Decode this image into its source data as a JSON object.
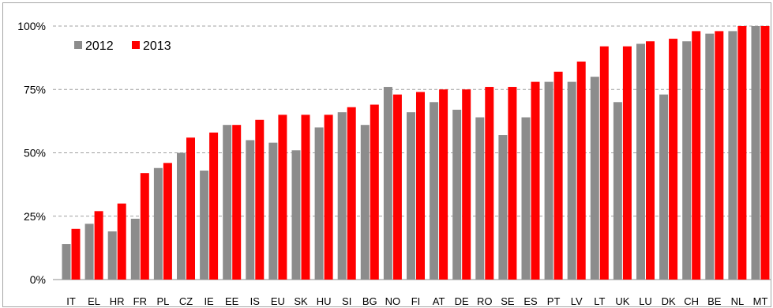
{
  "chart_data": {
    "type": "bar",
    "categories": [
      "IT",
      "EL",
      "HR",
      "FR",
      "PL",
      "CZ",
      "IE",
      "EE",
      "IS",
      "EU",
      "SK",
      "HU",
      "SI",
      "BG",
      "NO",
      "FI",
      "AT",
      "DE",
      "RO",
      "SE",
      "ES",
      "PT",
      "LV",
      "LT",
      "UK",
      "LU",
      "DK",
      "CH",
      "BE",
      "NL",
      "MT"
    ],
    "series": [
      {
        "name": "2012",
        "color": "#8c8c8c",
        "values": [
          14,
          22,
          19,
          24,
          44,
          50,
          43,
          61,
          55,
          54,
          51,
          60,
          66,
          61,
          76,
          66,
          70,
          67,
          64,
          57,
          64,
          78,
          78,
          80,
          70,
          93,
          73,
          94,
          97,
          98,
          100
        ]
      },
      {
        "name": "2013",
        "color": "#ff0000",
        "values": [
          20,
          27,
          30,
          42,
          46,
          56,
          58,
          61,
          63,
          65,
          65,
          65,
          68,
          69,
          73,
          74,
          75,
          75,
          76,
          76,
          78,
          82,
          86,
          92,
          92,
          94,
          95,
          98,
          98,
          100,
          100
        ]
      }
    ],
    "yticks": [
      "0%",
      "25%",
      "50%",
      "75%",
      "100%"
    ],
    "ylim": [
      0,
      100
    ],
    "grid": "horizontal dashed",
    "legend_position": "top-left"
  }
}
